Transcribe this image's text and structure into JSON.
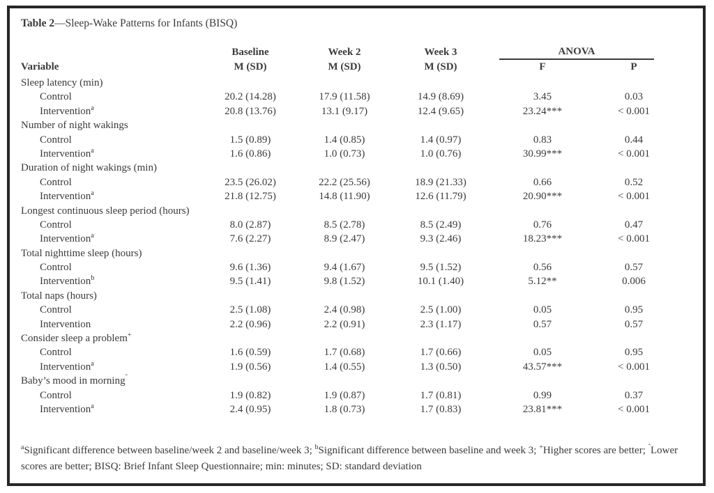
{
  "title": {
    "bold": "Table 2",
    "rest": "—Sleep-Wake Patterns for Infants (BISQ)"
  },
  "header": {
    "variable_label": "Variable",
    "cols": [
      {
        "line1": "Baseline",
        "line2": "M (SD)"
      },
      {
        "line1": "Week 2",
        "line2": "M (SD)"
      },
      {
        "line1": "Week 3",
        "line2": "M (SD)"
      }
    ],
    "anova_label": "ANOVA",
    "f_label": "F",
    "p_label": "P"
  },
  "rows": [
    {
      "type": "category",
      "label": "Sleep latency (min)"
    },
    {
      "type": "data",
      "label": "Control",
      "sup": "",
      "baseline": "20.2 (14.28)",
      "week2": "17.9 (11.58)",
      "week3": "14.9 (8.69)",
      "f": "3.45",
      "p": "0.03"
    },
    {
      "type": "data",
      "label": "Intervention",
      "sup": "a",
      "baseline": "20.8 (13.76)",
      "week2": "13.1 (9.17)",
      "week3": "12.4 (9.65)",
      "f": "23.24***",
      "p": "< 0.001"
    },
    {
      "type": "category",
      "label": "Number of night wakings"
    },
    {
      "type": "data",
      "label": "Control",
      "sup": "",
      "baseline": "1.5 (0.89)",
      "week2": "1.4 (0.85)",
      "week3": "1.4 (0.97)",
      "f": "0.83",
      "p": "0.44"
    },
    {
      "type": "data",
      "label": "Intervention",
      "sup": "a",
      "baseline": "1.6 (0.86)",
      "week2": "1.0 (0.73)",
      "week3": "1.0 (0.76)",
      "f": "30.99***",
      "p": "< 0.001"
    },
    {
      "type": "category",
      "label": "Duration of night wakings (min)"
    },
    {
      "type": "data",
      "label": "Control",
      "sup": "",
      "baseline": "23.5 (26.02)",
      "week2": "22.2 (25.56)",
      "week3": "18.9 (21.33)",
      "f": "0.66",
      "p": "0.52"
    },
    {
      "type": "data",
      "label": "Intervention",
      "sup": "a",
      "baseline": "21.8 (12.75)",
      "week2": "14.8 (11.90)",
      "week3": "12.6 (11.79)",
      "f": "20.90***",
      "p": "< 0.001"
    },
    {
      "type": "category",
      "label": "Longest continuous sleep period (hours)"
    },
    {
      "type": "data",
      "label": "Control",
      "sup": "",
      "baseline": "8.0 (2.87)",
      "week2": "8.5 (2.78)",
      "week3": "8.5 (2.49)",
      "f": "0.76",
      "p": "0.47"
    },
    {
      "type": "data",
      "label": "Intervention",
      "sup": "a",
      "baseline": "7.6 (2.27)",
      "week2": "8.9 (2.47)",
      "week3": "9.3 (2.46)",
      "f": "18.23***",
      "p": "< 0.001"
    },
    {
      "type": "category",
      "label": "Total nighttime sleep (hours)"
    },
    {
      "type": "data",
      "label": "Control",
      "sup": "",
      "baseline": "9.6 (1.36)",
      "week2": "9.4 (1.67)",
      "week3": "9.5 (1.52)",
      "f": "0.56",
      "p": "0.57"
    },
    {
      "type": "data",
      "label": "Intervention",
      "sup": "b",
      "baseline": "9.5 (1.41)",
      "week2": "9.8 (1.52)",
      "week3": "10.1 (1.40)",
      "f": "5.12**",
      "p": "0.006"
    },
    {
      "type": "category",
      "label": "Total naps (hours)"
    },
    {
      "type": "data",
      "label": "Control",
      "sup": "",
      "baseline": "2.5 (1.08)",
      "week2": "2.4 (0.98)",
      "week3": "2.5 (1.00)",
      "f": "0.05",
      "p": "0.95"
    },
    {
      "type": "data",
      "label": "Intervention",
      "sup": "",
      "baseline": "2.2 (0.96)",
      "week2": "2.2 (0.91)",
      "week3": "2.3 (1.17)",
      "f": "0.57",
      "p": "0.57"
    },
    {
      "type": "category",
      "label": "Consider sleep a problem",
      "sup": "+"
    },
    {
      "type": "data",
      "label": "Control",
      "sup": "",
      "baseline": "1.6 (0.59)",
      "week2": "1.7 (0.68)",
      "week3": "1.7 (0.66)",
      "f": "0.05",
      "p": "0.95"
    },
    {
      "type": "data",
      "label": "Intervention",
      "sup": "a",
      "baseline": "1.9 (0.56)",
      "week2": "1.4 (0.55)",
      "week3": "1.3 (0.50)",
      "f": "43.57***",
      "p": "< 0.001"
    },
    {
      "type": "category",
      "label": "Baby’s mood in morning",
      "sup": "ˆ"
    },
    {
      "type": "data",
      "label": "Control",
      "sup": "",
      "baseline": "1.9 (0.82)",
      "week2": "1.9 (0.87)",
      "week3": "1.7 (0.81)",
      "f": "0.99",
      "p": "0.37"
    },
    {
      "type": "data",
      "label": "Intervention",
      "sup": "a",
      "baseline": "2.4 (0.95)",
      "week2": "1.8 (0.73)",
      "week3": "1.7 (0.83)",
      "f": "23.81***",
      "p": "< 0.001"
    }
  ],
  "footnote": {
    "segments": [
      {
        "sup": "a",
        "text": "Significant difference between baseline/week 2 and baseline/week 3; "
      },
      {
        "sup": "b",
        "text": "Significant difference between baseline and week 3; "
      },
      {
        "sup": "+",
        "text": "Higher scores are better; "
      },
      {
        "sup": "ˆ",
        "text": "Lower scores are better; BISQ: Brief Infant Sleep Questionnaire; min: minutes; SD: standard deviation"
      }
    ]
  }
}
